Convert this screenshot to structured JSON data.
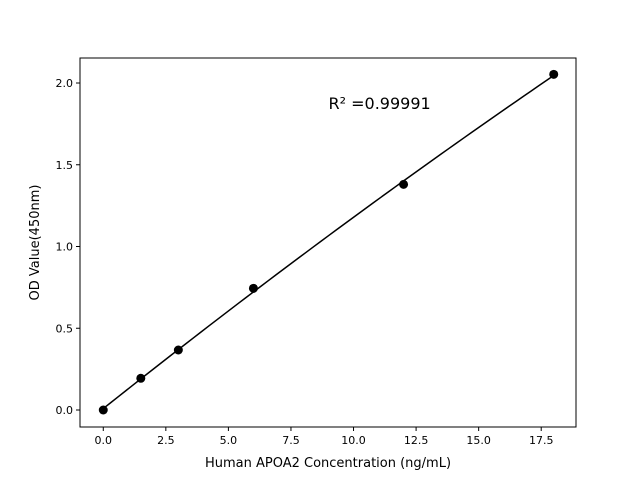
{
  "chart_data": {
    "type": "scatter",
    "title": "",
    "xlabel": "Human APOA2 Concentration (ng/mL)",
    "ylabel": "OD Value(450nm)",
    "xlim": [
      -0.93,
      18.89
    ],
    "ylim": [
      -0.104,
      2.153
    ],
    "xticks": [
      0.0,
      2.5,
      5.0,
      7.5,
      10.0,
      12.5,
      15.0,
      17.5
    ],
    "xtick_labels": [
      "0.0",
      "2.5",
      "5.0",
      "7.5",
      "10.0",
      "12.5",
      "15.0",
      "17.5"
    ],
    "yticks": [
      0.0,
      0.5,
      1.0,
      1.5,
      2.0
    ],
    "ytick_labels": [
      "0.0",
      "0.5",
      "1.0",
      "1.5",
      "2.0"
    ],
    "grid": false,
    "series": [
      {
        "x": [
          0,
          1.5,
          3,
          6,
          12,
          18
        ],
        "y": [
          0.0,
          0.194,
          0.367,
          0.744,
          1.38,
          2.053
        ],
        "color": "#000000",
        "marker": "circle",
        "fit_line": true
      }
    ],
    "annotations": [
      {
        "text": "R² =0.99991",
        "x": 9.0,
        "y": 1.84
      }
    ]
  }
}
